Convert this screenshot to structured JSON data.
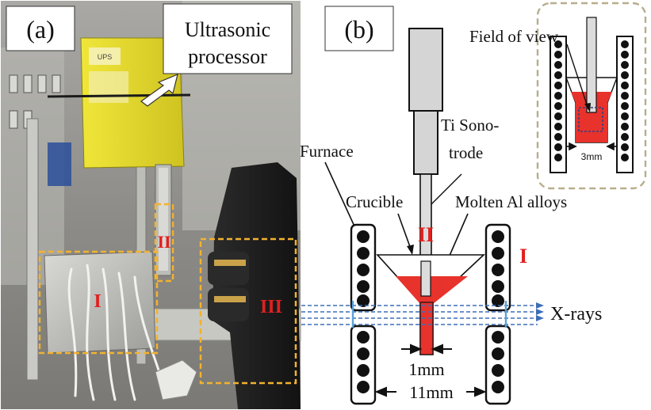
{
  "panel_a": {
    "label": "(a)",
    "callout": {
      "line1": "Ultrasonic",
      "line2": "processor"
    },
    "region_labels": {
      "r1": "I",
      "r2": "II",
      "r3": "III"
    },
    "photo_brand_text": "UPS"
  },
  "panel_b": {
    "label": "(b)",
    "sonotrode_label": {
      "line1": "Ti Sono-",
      "line2": "trode"
    },
    "furnace_label": "Furnace",
    "crucible_label": "Crucible",
    "molten_label": "Molten Al alloys",
    "xrays_label": "X-rays",
    "dim_small": "1mm",
    "dim_large": "11mm",
    "region_labels": {
      "r1": "I",
      "r2": "II"
    },
    "inset": {
      "field_of_view": "Field of view",
      "dim": "3mm"
    }
  },
  "colors": {
    "photo_bg": "#8f8f8b",
    "panel_yellow": "#e6dd2c",
    "dash_orange": "#f2b22f",
    "roman_red": "#e02020",
    "molten_red": "#e8322c",
    "xray_blue": "#3d6fb5",
    "inset_border": "#b7ad8c"
  }
}
